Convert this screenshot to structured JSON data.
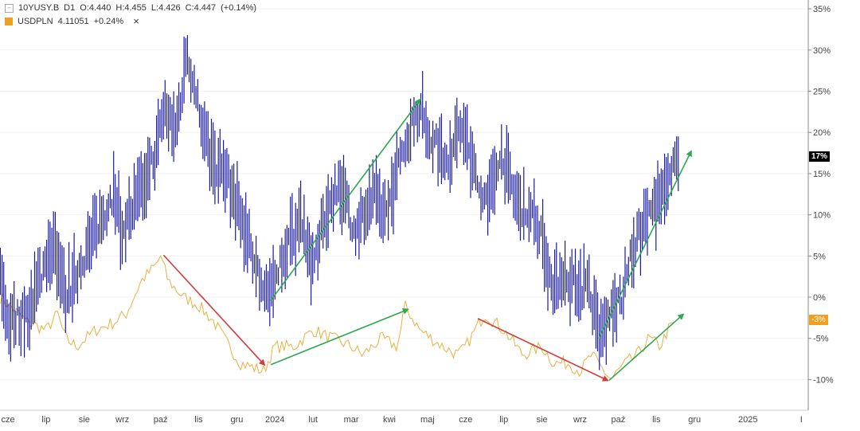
{
  "legend": {
    "series1": {
      "collapse_icon": "minus-box-icon",
      "symbol": "10YUSY.B",
      "interval": "D1",
      "open": "O:4.440",
      "high": "H:4.455",
      "low": "L:4.426",
      "close": "C:4.447",
      "change": "(+0.14%)"
    },
    "series2": {
      "symbol": "USDPLN",
      "value": "4.11051",
      "change": "+0.24%",
      "close_icon": "×"
    }
  },
  "badges": {
    "blue": "17%",
    "orange": "-3%"
  },
  "colors": {
    "blue": "#1a1aa0",
    "orange": "#e8b040",
    "badge_orange": "#f0a020",
    "red_arrow": "#d23c3c",
    "green_arrow": "#2ea84f"
  },
  "chart_data": {
    "type": "line",
    "title": "",
    "xlabel": "",
    "ylabel": "",
    "ylim": [
      -13,
      36
    ],
    "xlim": [
      -0.2,
      20.8
    ],
    "y_ticks": [
      "35%",
      "30%",
      "25%",
      "20%",
      "15%",
      "10%",
      "5%",
      "0%",
      "-5%",
      "-10%"
    ],
    "y_tick_values": [
      35,
      30,
      25,
      20,
      15,
      10,
      5,
      0,
      -5,
      -10
    ],
    "x_ticks": [
      "cze",
      "lip",
      "sie",
      "wrz",
      "paź",
      "lis",
      "gru",
      "2024",
      "lut",
      "mar",
      "kwi",
      "maj",
      "cze",
      "lip",
      "sie",
      "wrz",
      "paź",
      "lis",
      "gru",
      "2025",
      "I"
    ],
    "x_tick_values": [
      0,
      1,
      2,
      3,
      4,
      5,
      6,
      7,
      8,
      9,
      10,
      11,
      12,
      13,
      14,
      15,
      16,
      17,
      18,
      19.4,
      20.8
    ],
    "series": [
      {
        "name": "10YUSY.B",
        "style": "candles",
        "points": [
          [
            -0.2,
            2.5
          ],
          [
            0,
            -3
          ],
          [
            0.5,
            -2
          ],
          [
            1.2,
            7
          ],
          [
            1.5,
            0
          ],
          [
            2.3,
            8
          ],
          [
            2.8,
            13
          ],
          [
            3.0,
            8
          ],
          [
            3.5,
            13
          ],
          [
            3.9,
            18
          ],
          [
            4.1,
            23
          ],
          [
            4.4,
            20
          ],
          [
            4.7,
            30
          ],
          [
            4.9,
            25
          ],
          [
            5.3,
            17
          ],
          [
            5.7,
            15
          ],
          [
            6.1,
            10
          ],
          [
            6.6,
            2
          ],
          [
            6.9,
            0
          ],
          [
            7.2,
            5
          ],
          [
            7.7,
            10
          ],
          [
            8.0,
            3
          ],
          [
            8.3,
            10
          ],
          [
            8.7,
            14
          ],
          [
            9.1,
            8
          ],
          [
            9.6,
            12
          ],
          [
            9.9,
            10
          ],
          [
            10.2,
            15
          ],
          [
            10.5,
            20
          ],
          [
            10.8,
            23
          ],
          [
            11.0,
            20
          ],
          [
            11.3,
            18
          ],
          [
            11.6,
            17
          ],
          [
            11.9,
            21
          ],
          [
            12.4,
            12
          ],
          [
            12.7,
            13
          ],
          [
            12.9,
            18
          ],
          [
            13.3,
            12
          ],
          [
            13.7,
            10
          ],
          [
            14.0,
            8
          ],
          [
            14.3,
            0
          ],
          [
            14.5,
            3
          ],
          [
            15.0,
            1
          ],
          [
            15.2,
            2
          ],
          [
            15.5,
            -5
          ],
          [
            15.8,
            -2
          ],
          [
            16.1,
            0
          ],
          [
            16.4,
            6
          ],
          [
            16.9,
            11
          ],
          [
            17.3,
            13
          ],
          [
            17.6,
            18
          ]
        ]
      },
      {
        "name": "USDPLN",
        "style": "line",
        "points": [
          [
            -0.2,
            0
          ],
          [
            0.5,
            -3
          ],
          [
            1.0,
            -4
          ],
          [
            1.3,
            -2
          ],
          [
            1.5,
            -5
          ],
          [
            1.8,
            -6
          ],
          [
            2.3,
            -4
          ],
          [
            2.8,
            -3
          ],
          [
            3.1,
            -2
          ],
          [
            3.5,
            2
          ],
          [
            3.9,
            4
          ],
          [
            4.0,
            5
          ],
          [
            4.2,
            2
          ],
          [
            4.6,
            0
          ],
          [
            5.0,
            -1
          ],
          [
            5.4,
            -3
          ],
          [
            5.8,
            -6
          ],
          [
            6.1,
            -8
          ],
          [
            6.7,
            -9
          ],
          [
            7.0,
            -6
          ],
          [
            7.5,
            -6
          ],
          [
            8.0,
            -4
          ],
          [
            8.5,
            -5
          ],
          [
            9.0,
            -6
          ],
          [
            9.3,
            -7
          ],
          [
            9.8,
            -5
          ],
          [
            10.2,
            -6
          ],
          [
            10.3,
            -4
          ],
          [
            10.4,
            -1
          ],
          [
            10.8,
            -4
          ],
          [
            11.4,
            -6
          ],
          [
            11.8,
            -7
          ],
          [
            12.0,
            -6
          ],
          [
            12.5,
            -2
          ],
          [
            13.0,
            -4
          ],
          [
            13.5,
            -7
          ],
          [
            14.0,
            -6
          ],
          [
            14.3,
            -8
          ],
          [
            14.7,
            -8
          ],
          [
            15.0,
            -9
          ],
          [
            15.3,
            -7
          ],
          [
            15.8,
            -10
          ],
          [
            16.2,
            -8
          ],
          [
            16.5,
            -7
          ],
          [
            16.8,
            -5
          ],
          [
            17.1,
            -6
          ],
          [
            17.3,
            -4
          ],
          [
            17.5,
            -3
          ]
        ]
      }
    ],
    "annotations": [
      {
        "type": "arrow",
        "color": "red",
        "from": [
          4.08,
          5.1
        ],
        "to": [
          6.72,
          -8.2
        ]
      },
      {
        "type": "arrow",
        "color": "green",
        "from": [
          6.89,
          -0.4
        ],
        "to": [
          10.81,
          24
        ]
      },
      {
        "type": "arrow",
        "color": "green",
        "from": [
          6.89,
          -8.2
        ],
        "to": [
          10.48,
          -1.5
        ]
      },
      {
        "type": "arrow",
        "color": "red",
        "from": [
          12.32,
          -2.6
        ],
        "to": [
          15.72,
          -10.1
        ]
      },
      {
        "type": "arrow",
        "color": "green",
        "from": [
          15.49,
          -5
        ],
        "to": [
          17.91,
          17.7
        ]
      },
      {
        "type": "arrow",
        "color": "green",
        "from": [
          15.76,
          -10.1
        ],
        "to": [
          17.7,
          -2.1
        ]
      }
    ],
    "grid": true
  }
}
